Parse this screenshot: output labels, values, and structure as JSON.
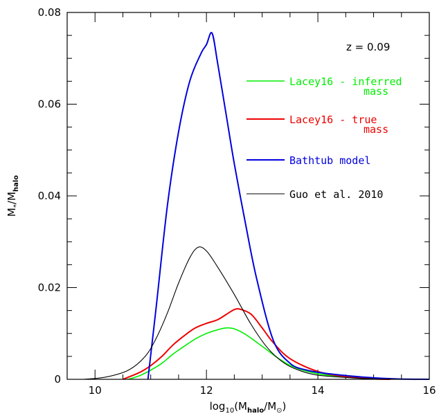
{
  "chart_data": {
    "type": "line",
    "title": "",
    "annotation": "z = 0.09",
    "xlabel": {
      "base": "log",
      "sub1": "10",
      "mid": "(M",
      "sub2": "halo",
      "sep": "/M",
      "sub3": "⊙",
      "end": ")"
    },
    "ylabel": {
      "pre": "M",
      "sub1": "*",
      "sep": "/M",
      "sub2": "halo"
    },
    "xlim": [
      9.5,
      16
    ],
    "ylim": [
      0,
      0.08
    ],
    "xticks_major": [
      10,
      12,
      14,
      16
    ],
    "xtick_labels": [
      "10",
      "12",
      "14",
      "16"
    ],
    "yticks_major": [
      0,
      0.02,
      0.04,
      0.06,
      0.08
    ],
    "ytick_labels": [
      "0",
      "0.02",
      "0.04",
      "0.06",
      "0.08"
    ],
    "legend_placement": "right",
    "series": [
      {
        "name": "Lacey16 - inferred mass",
        "legend_lines": [
          "Lacey16 - inferred",
          "mass"
        ],
        "color": "#00ee00",
        "width": 1.6,
        "x": [
          10.6,
          10.8,
          11.0,
          11.2,
          11.4,
          11.6,
          11.8,
          12.0,
          12.2,
          12.35,
          12.5,
          12.7,
          13.0,
          13.3,
          13.6,
          14.0,
          14.5,
          15.0,
          15.3
        ],
        "y": [
          0.0,
          0.0008,
          0.002,
          0.0035,
          0.0055,
          0.0072,
          0.0088,
          0.01,
          0.0108,
          0.0112,
          0.011,
          0.0098,
          0.0072,
          0.0045,
          0.0025,
          0.0012,
          0.0005,
          0.0001,
          0.0
        ]
      },
      {
        "name": "Lacey16 - true mass",
        "legend_lines": [
          "Lacey16 - true",
          "mass"
        ],
        "color": "#ee0000",
        "width": 2,
        "x": [
          10.5,
          10.8,
          11.0,
          11.2,
          11.4,
          11.6,
          11.8,
          12.0,
          12.2,
          12.4,
          12.5,
          12.6,
          12.8,
          13.0,
          13.2,
          13.5,
          14.0,
          14.5,
          15.0,
          15.3
        ],
        "y": [
          0.0,
          0.0015,
          0.003,
          0.005,
          0.0075,
          0.0095,
          0.0112,
          0.0122,
          0.013,
          0.0145,
          0.0152,
          0.0153,
          0.0142,
          0.0112,
          0.008,
          0.0045,
          0.0017,
          0.0006,
          0.0001,
          0.0
        ]
      },
      {
        "name": "Bathtub model",
        "legend_lines": [
          "Bathtub model"
        ],
        "color": "#0000dd",
        "width": 2,
        "x": [
          10.95,
          11.1,
          11.3,
          11.5,
          11.7,
          11.9,
          12.0,
          12.1,
          12.2,
          12.35,
          12.5,
          12.7,
          12.9,
          13.2,
          13.5,
          13.8,
          14.2,
          14.8,
          15.4,
          16.0
        ],
        "y": [
          0.0,
          0.016,
          0.038,
          0.054,
          0.065,
          0.071,
          0.073,
          0.0755,
          0.069,
          0.058,
          0.047,
          0.034,
          0.022,
          0.0085,
          0.0035,
          0.002,
          0.0012,
          0.0005,
          0.0001,
          0.0
        ]
      },
      {
        "name": "Guo et al. 2010",
        "legend_lines": [
          "Guo et al. 2010"
        ],
        "color": "#000000",
        "width": 1.1,
        "x": [
          9.8,
          10.2,
          10.6,
          10.9,
          11.1,
          11.3,
          11.5,
          11.7,
          11.85,
          12.0,
          12.2,
          12.5,
          12.8,
          13.1,
          13.4,
          13.7,
          14.0,
          14.5,
          15.0,
          15.5,
          15.8
        ],
        "y": [
          0.0,
          0.0005,
          0.002,
          0.005,
          0.009,
          0.0145,
          0.021,
          0.0265,
          0.0288,
          0.028,
          0.0245,
          0.0185,
          0.012,
          0.0068,
          0.0035,
          0.0018,
          0.0009,
          0.0004,
          0.0001,
          2e-05,
          0.0
        ]
      }
    ]
  }
}
